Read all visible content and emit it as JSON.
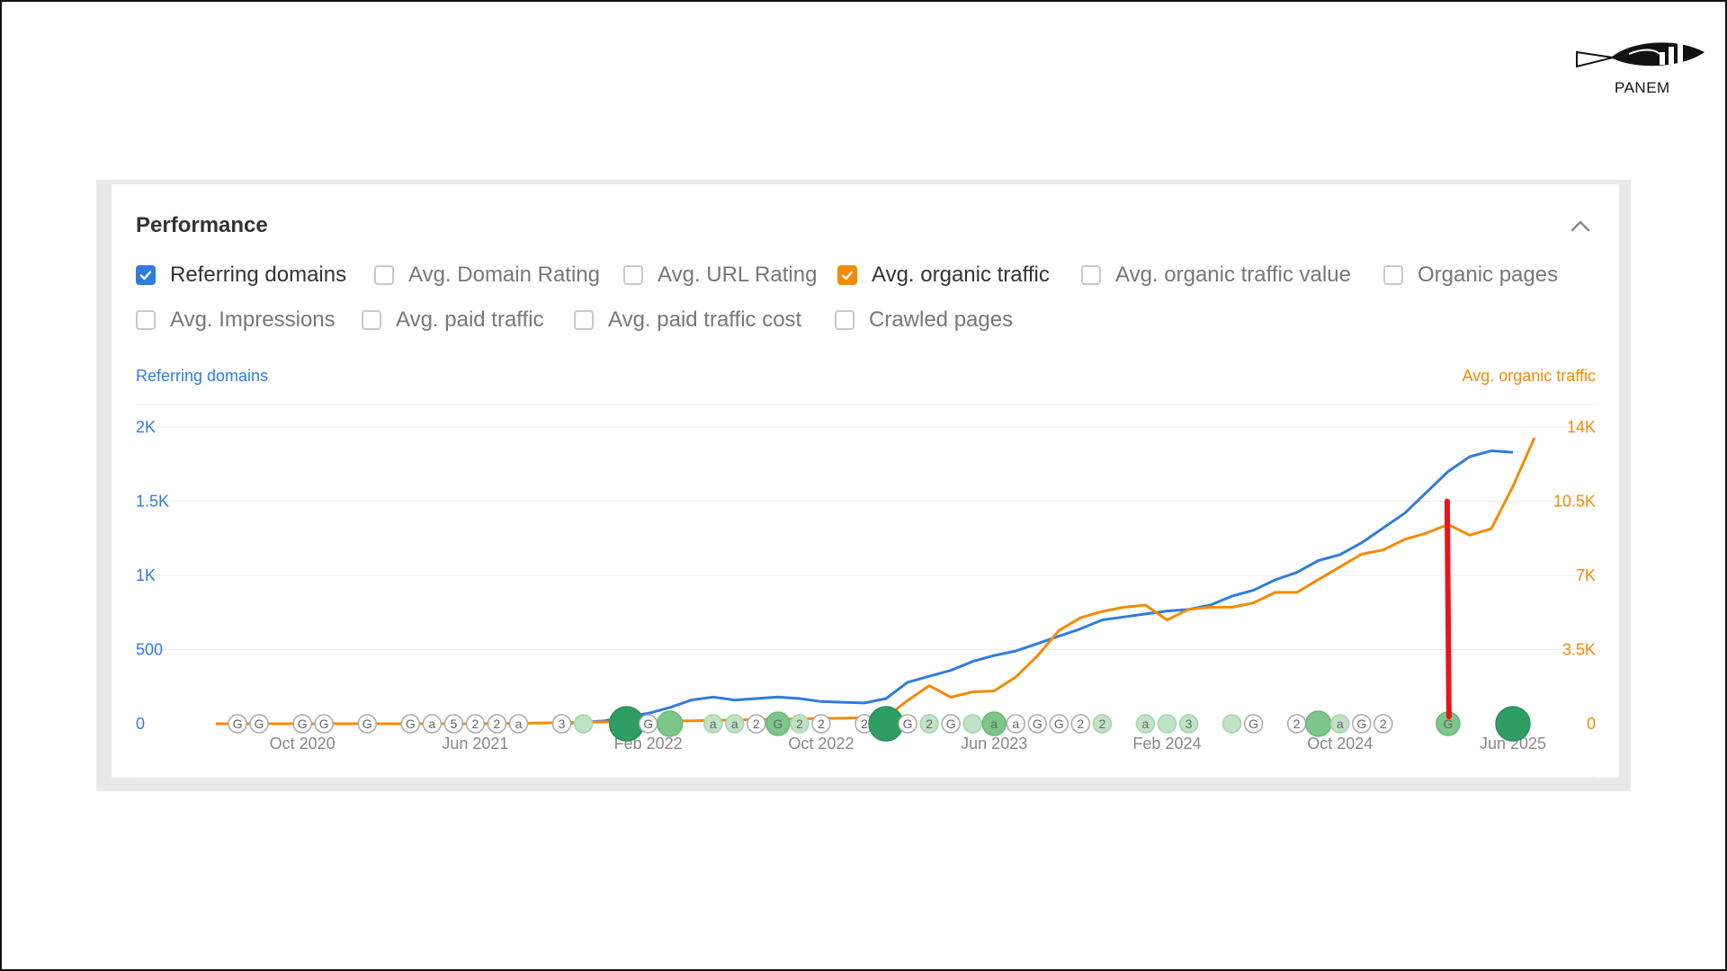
{
  "brand": {
    "name": "PANEM"
  },
  "panel": {
    "title": "Performance"
  },
  "metrics": [
    {
      "label": "Referring domains",
      "checked": true,
      "color": "#2f7ce0"
    },
    {
      "label": "Avg. Domain Rating",
      "checked": false
    },
    {
      "label": "Avg. URL Rating",
      "checked": false
    },
    {
      "label": "Avg. organic traffic",
      "checked": true,
      "color": "#f58a07"
    },
    {
      "label": "Avg. organic traffic value",
      "checked": false
    },
    {
      "label": "Organic pages",
      "checked": false
    },
    {
      "label": "Avg. Impressions",
      "checked": false
    },
    {
      "label": "Avg. paid traffic",
      "checked": false
    },
    {
      "label": "Avg. paid traffic cost",
      "checked": false
    },
    {
      "label": "Crawled pages",
      "checked": false
    }
  ],
  "colors": {
    "blue": "#2f7ce0",
    "orange": "#f58a07",
    "annotation": "#e8141b",
    "marker_green": "#4caf6a"
  },
  "chart_data": {
    "type": "line",
    "left_axis": {
      "title": "Referring domains",
      "ticks": [
        0,
        500,
        1000,
        1500,
        2000
      ],
      "tick_labels": [
        "0",
        "500",
        "1K",
        "1.5K",
        "2K"
      ],
      "range": [
        0,
        2000
      ]
    },
    "right_axis": {
      "title": "Avg. organic traffic",
      "ticks": [
        0,
        3500,
        7000,
        10500,
        14000
      ],
      "tick_labels": [
        "0",
        "3.5K",
        "7K",
        "10.5K",
        "14K"
      ],
      "range": [
        0,
        14000
      ]
    },
    "x_axis": {
      "range": [
        "2020-06",
        "2025-06"
      ],
      "tick_labels": [
        "Oct 2020",
        "Jun 2021",
        "Feb 2022",
        "Oct 2022",
        "Jun 2023",
        "Feb 2024",
        "Oct 2024",
        "Jun 2025"
      ],
      "tick_months": [
        "2020-10",
        "2021-06",
        "2022-02",
        "2022-10",
        "2023-06",
        "2024-02",
        "2024-10",
        "2025-06"
      ]
    },
    "grid": true,
    "series": [
      {
        "name": "Referring domains",
        "axis": "left",
        "color": "#2f7ce0",
        "points": [
          [
            "2021-10",
            0
          ],
          [
            "2021-11",
            10
          ],
          [
            "2021-12",
            20
          ],
          [
            "2022-01",
            50
          ],
          [
            "2022-02",
            70
          ],
          [
            "2022-03",
            110
          ],
          [
            "2022-04",
            160
          ],
          [
            "2022-05",
            180
          ],
          [
            "2022-06",
            160
          ],
          [
            "2022-07",
            170
          ],
          [
            "2022-08",
            180
          ],
          [
            "2022-09",
            170
          ],
          [
            "2022-10",
            150
          ],
          [
            "2022-11",
            145
          ],
          [
            "2022-12",
            140
          ],
          [
            "2023-01",
            170
          ],
          [
            "2023-02",
            280
          ],
          [
            "2023-03",
            320
          ],
          [
            "2023-04",
            360
          ],
          [
            "2023-05",
            420
          ],
          [
            "2023-06",
            460
          ],
          [
            "2023-07",
            490
          ],
          [
            "2023-08",
            540
          ],
          [
            "2023-09",
            590
          ],
          [
            "2023-10",
            640
          ],
          [
            "2023-11",
            700
          ],
          [
            "2023-12",
            720
          ],
          [
            "2024-01",
            740
          ],
          [
            "2024-02",
            760
          ],
          [
            "2024-03",
            770
          ],
          [
            "2024-04",
            800
          ],
          [
            "2024-05",
            860
          ],
          [
            "2024-06",
            900
          ],
          [
            "2024-07",
            970
          ],
          [
            "2024-08",
            1020
          ],
          [
            "2024-09",
            1100
          ],
          [
            "2024-10",
            1140
          ],
          [
            "2024-11",
            1220
          ],
          [
            "2024-12",
            1320
          ],
          [
            "2025-01",
            1420
          ],
          [
            "2025-02",
            1560
          ],
          [
            "2025-03",
            1700
          ],
          [
            "2025-04",
            1800
          ],
          [
            "2025-05",
            1840
          ],
          [
            "2025-06",
            1830
          ]
        ]
      },
      {
        "name": "Avg. organic traffic",
        "axis": "right",
        "color": "#f58a07",
        "points": [
          [
            "2020-06",
            0
          ],
          [
            "2020-08",
            0
          ],
          [
            "2020-10",
            0
          ],
          [
            "2021-01",
            0
          ],
          [
            "2021-04",
            0
          ],
          [
            "2021-07",
            0
          ],
          [
            "2021-10",
            50
          ],
          [
            "2022-01",
            100
          ],
          [
            "2022-04",
            140
          ],
          [
            "2022-07",
            200
          ],
          [
            "2022-10",
            250
          ],
          [
            "2022-12",
            280
          ],
          [
            "2023-01",
            300
          ],
          [
            "2023-02",
            1100
          ],
          [
            "2023-03",
            1800
          ],
          [
            "2023-04",
            1250
          ],
          [
            "2023-05",
            1500
          ],
          [
            "2023-06",
            1550
          ],
          [
            "2023-07",
            2200
          ],
          [
            "2023-08",
            3200
          ],
          [
            "2023-09",
            4400
          ],
          [
            "2023-10",
            5000
          ],
          [
            "2023-11",
            5300
          ],
          [
            "2023-12",
            5500
          ],
          [
            "2024-01",
            5600
          ],
          [
            "2024-02",
            4900
          ],
          [
            "2024-03",
            5400
          ],
          [
            "2024-04",
            5500
          ],
          [
            "2024-05",
            5500
          ],
          [
            "2024-06",
            5700
          ],
          [
            "2024-07",
            6200
          ],
          [
            "2024-08",
            6200
          ],
          [
            "2024-09",
            6800
          ],
          [
            "2024-10",
            7400
          ],
          [
            "2024-11",
            8000
          ],
          [
            "2024-12",
            8200
          ],
          [
            "2025-01",
            8700
          ],
          [
            "2025-02",
            9000
          ],
          [
            "2025-03",
            9400
          ],
          [
            "2025-04",
            8900
          ],
          [
            "2025-05",
            9200
          ],
          [
            "2025-06",
            11200
          ],
          [
            "2025-07",
            13500
          ]
        ]
      }
    ],
    "markers": [
      {
        "m": "2020-07",
        "l": "G",
        "s": 1,
        "c": "w"
      },
      {
        "m": "2020-08",
        "l": "G",
        "s": 1,
        "c": "w"
      },
      {
        "m": "2020-10",
        "l": "G",
        "s": 1,
        "c": "w"
      },
      {
        "m": "2020-11",
        "l": "G",
        "s": 1,
        "c": "w"
      },
      {
        "m": "2021-01",
        "l": "G",
        "s": 1,
        "c": "w"
      },
      {
        "m": "2021-03",
        "l": "G",
        "s": 1,
        "c": "w"
      },
      {
        "m": "2021-04",
        "l": "a",
        "s": 1,
        "c": "w"
      },
      {
        "m": "2021-05",
        "l": "5",
        "s": 1,
        "c": "w"
      },
      {
        "m": "2021-06",
        "l": "2",
        "s": 1,
        "c": "w"
      },
      {
        "m": "2021-07",
        "l": "2",
        "s": 1,
        "c": "w"
      },
      {
        "m": "2021-08",
        "l": "a",
        "s": 1,
        "c": "w"
      },
      {
        "m": "2021-10",
        "l": "3",
        "s": 1,
        "c": "w"
      },
      {
        "m": "2021-11",
        "l": "",
        "s": 1,
        "c": "lg"
      },
      {
        "m": "2022-01",
        "l": "",
        "s": 1.9,
        "c": "dg"
      },
      {
        "m": "2022-02",
        "l": "G",
        "s": 1,
        "c": "w"
      },
      {
        "m": "2022-03",
        "l": "",
        "s": 1.4,
        "c": "mg"
      },
      {
        "m": "2022-05",
        "l": "a",
        "s": 1,
        "c": "lg"
      },
      {
        "m": "2022-06",
        "l": "a",
        "s": 1,
        "c": "lg"
      },
      {
        "m": "2022-07",
        "l": "2",
        "s": 1,
        "c": "w"
      },
      {
        "m": "2022-08",
        "l": "G",
        "s": 1.3,
        "c": "mg"
      },
      {
        "m": "2022-09",
        "l": "2",
        "s": 1,
        "c": "lg"
      },
      {
        "m": "2022-10",
        "l": "2",
        "s": 1,
        "c": "w"
      },
      {
        "m": "2022-12",
        "l": "2",
        "s": 1,
        "c": "w"
      },
      {
        "m": "2023-01",
        "l": "",
        "s": 1.9,
        "c": "dg"
      },
      {
        "m": "2023-02",
        "l": "G",
        "s": 1,
        "c": "w"
      },
      {
        "m": "2023-03",
        "l": "2",
        "s": 1,
        "c": "lg"
      },
      {
        "m": "2023-04",
        "l": "G",
        "s": 1,
        "c": "w"
      },
      {
        "m": "2023-05",
        "l": "",
        "s": 1,
        "c": "lg"
      },
      {
        "m": "2023-06",
        "l": "a",
        "s": 1.3,
        "c": "mg"
      },
      {
        "m": "2023-07",
        "l": "a",
        "s": 1,
        "c": "w"
      },
      {
        "m": "2023-08",
        "l": "G",
        "s": 1,
        "c": "w"
      },
      {
        "m": "2023-09",
        "l": "G",
        "s": 1,
        "c": "w"
      },
      {
        "m": "2023-10",
        "l": "2",
        "s": 1,
        "c": "w"
      },
      {
        "m": "2023-11",
        "l": "2",
        "s": 1,
        "c": "lg"
      },
      {
        "m": "2024-01",
        "l": "a",
        "s": 1,
        "c": "lg"
      },
      {
        "m": "2024-02",
        "l": "",
        "s": 1,
        "c": "lg"
      },
      {
        "m": "2024-03",
        "l": "3",
        "s": 1,
        "c": "lg"
      },
      {
        "m": "2024-05",
        "l": "",
        "s": 1,
        "c": "lg"
      },
      {
        "m": "2024-06",
        "l": "G",
        "s": 1,
        "c": "w"
      },
      {
        "m": "2024-08",
        "l": "2",
        "s": 1,
        "c": "w"
      },
      {
        "m": "2024-09",
        "l": "",
        "s": 1.4,
        "c": "mg"
      },
      {
        "m": "2024-10",
        "l": "a",
        "s": 1,
        "c": "lg"
      },
      {
        "m": "2024-11",
        "l": "G",
        "s": 1,
        "c": "w"
      },
      {
        "m": "2024-12",
        "l": "2",
        "s": 1,
        "c": "w"
      },
      {
        "m": "2025-03",
        "l": "G",
        "s": 1.3,
        "c": "mg"
      },
      {
        "m": "2025-06",
        "l": "",
        "s": 1.9,
        "c": "dg"
      }
    ],
    "annotation": {
      "type": "vertical-line",
      "x": "2025-03",
      "from": 0,
      "to": 1500,
      "axis": "left",
      "color": "#e8141b"
    }
  }
}
